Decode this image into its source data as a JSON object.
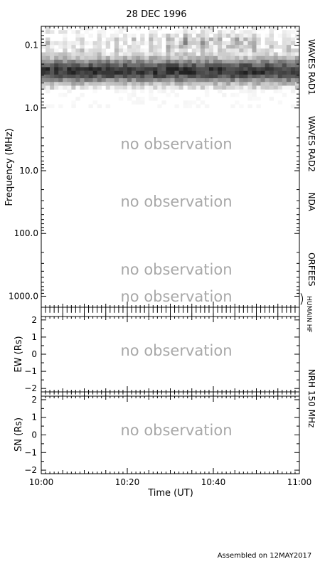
{
  "chart_data": {
    "type": "heatmap",
    "title": "28 DEC 1996",
    "footer": "Assembled on 12MAY2017",
    "x_axis": {
      "label": "Time (UT)",
      "range": [
        "10:00",
        "11:00"
      ],
      "ticks": [
        "10:00",
        "10:20",
        "10:40",
        "11:00"
      ]
    },
    "spectrum": {
      "ylabel": "Frequency (MHz)",
      "scale": "log",
      "ylim": [
        0.05,
        1500
      ],
      "ticks": [
        "0.1",
        "1.0",
        "10.0",
        "100.0",
        "1000.0"
      ],
      "instruments": [
        {
          "name": "WAVES RAD1",
          "range": [
            0.05,
            1.0
          ],
          "observed": true
        },
        {
          "name": "WAVES RAD2",
          "range": [
            1.0,
            14
          ],
          "observed": false,
          "note": "no observation"
        },
        {
          "name": "NDA",
          "range": [
            14,
            70
          ],
          "observed": false,
          "note": "no observation"
        },
        {
          "name": "ORFEES",
          "range": [
            140,
            1000
          ],
          "observed": false,
          "note": "no observation"
        },
        {
          "name": "HUMAIN HF",
          "range": [
            1000,
            1500
          ],
          "observed": false,
          "note": "no observation"
        }
      ]
    },
    "nrh": {
      "right_label": "NRH 150 MHz",
      "panels": [
        {
          "ylabel": "EW (Rs)",
          "ylim": [
            -2.2,
            2.2
          ],
          "ticks": [
            "2",
            "1",
            "0",
            "−1",
            "−2"
          ],
          "note": "no observation"
        },
        {
          "ylabel": "SN (Rs)",
          "ylim": [
            -2.2,
            2.2
          ],
          "ticks": [
            "2",
            "1",
            "0",
            "−1",
            "−2"
          ],
          "note": "no observation"
        }
      ]
    },
    "colors": {
      "text": "#000000",
      "note": "#a8a8a8",
      "axis": "#000000"
    }
  }
}
